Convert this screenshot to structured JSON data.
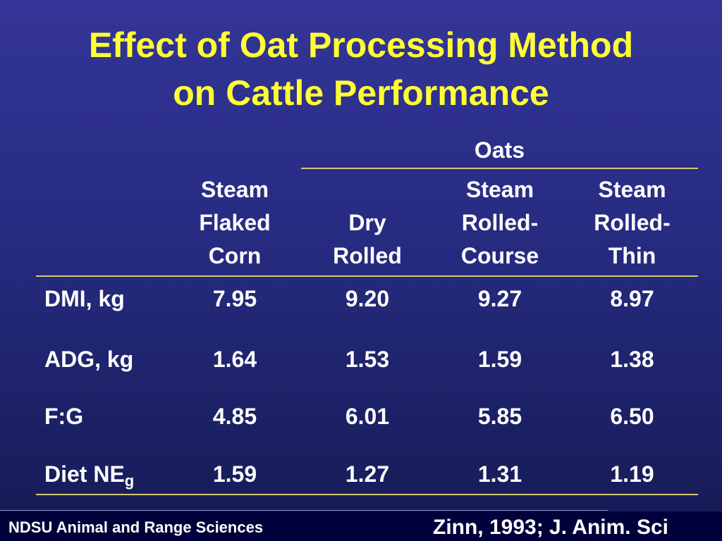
{
  "slide": {
    "title_line1": "Effect of Oat Processing Method",
    "title_line2": "on Cattle Performance"
  },
  "table": {
    "group_header": "Oats",
    "columns": [
      {
        "lines": [
          "Steam",
          "Flaked",
          "Corn"
        ]
      },
      {
        "lines": [
          "Dry",
          "Rolled"
        ]
      },
      {
        "lines": [
          "Steam",
          "Rolled-",
          "Course"
        ]
      },
      {
        "lines": [
          "Steam",
          "Rolled-",
          "Thin"
        ]
      }
    ],
    "rows": [
      {
        "label": "DMI, kg",
        "values": [
          "7.95",
          "9.20",
          "9.27",
          "8.97"
        ]
      },
      {
        "label": "ADG, kg",
        "values": [
          "1.64",
          "1.53",
          "1.59",
          "1.38"
        ]
      },
      {
        "label": "F:G",
        "values": [
          "4.85",
          "6.01",
          "5.85",
          "6.50"
        ]
      },
      {
        "label": "Diet NE",
        "label_sub": "g",
        "values": [
          "1.59",
          "1.27",
          "1.31",
          "1.19"
        ]
      }
    ]
  },
  "footer": {
    "left": "NDSU Animal and Range Sciences",
    "right": "Zinn, 1993; J. Anim. Sci"
  },
  "colors": {
    "title": "#ffff33",
    "text": "#ffffff",
    "rule": "#d8c878",
    "background_top": "#343597",
    "background_bottom": "#151a53",
    "footer_bar": "#00003a"
  }
}
